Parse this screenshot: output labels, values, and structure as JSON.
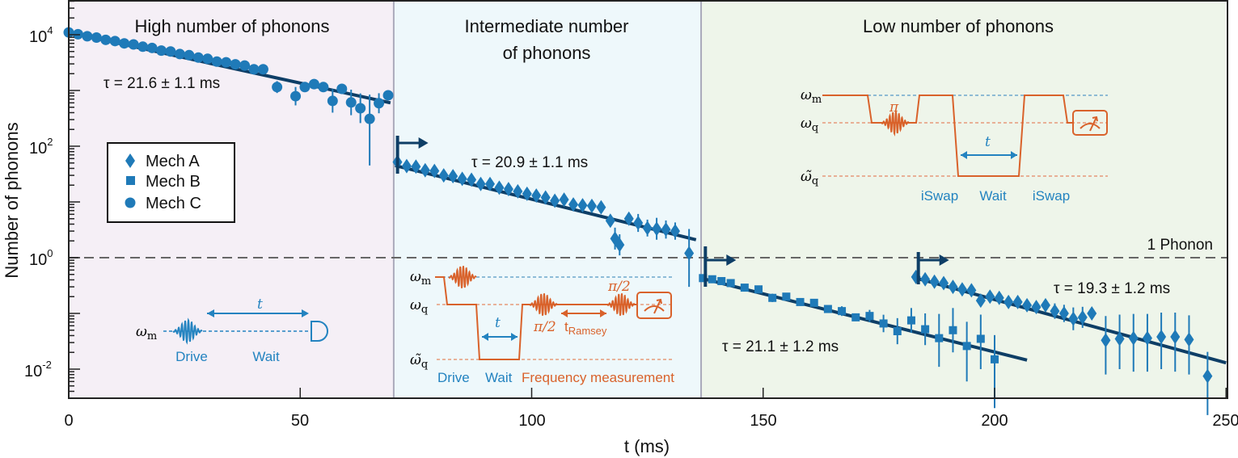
{
  "chart_data": {
    "type": "scatter",
    "title": "",
    "xlabel": "t (ms)",
    "ylabel": "Number of phonons",
    "xlim": [
      0,
      250
    ],
    "ylim_log10": [
      -2.52,
      4.62
    ],
    "yscale": "log",
    "x_ticks": [
      0,
      50,
      100,
      150,
      200,
      250
    ],
    "y_ticks": [
      {
        "base": "10",
        "exp": "4",
        "value": 10000
      },
      {
        "base": "10",
        "exp": "2",
        "value": 100
      },
      {
        "base": "10",
        "exp": "0",
        "value": 1
      },
      {
        "base": "10",
        "exp": "-2",
        "value": 0.01
      }
    ],
    "legend": {
      "placement": "center-left",
      "entries": [
        {
          "label": "Mech A",
          "marker": "diamond"
        },
        {
          "label": "Mech B",
          "marker": "square"
        },
        {
          "label": "Mech C",
          "marker": "circle"
        }
      ]
    },
    "regions": [
      {
        "label": "High number of phonons",
        "t_range": [
          0,
          70.2
        ],
        "color": "#f5eff6"
      },
      {
        "label_line1": "Intermediate number",
        "label_line2": "of phonons",
        "t_range": [
          70.2,
          136.6
        ],
        "color": "#eef8fb"
      },
      {
        "label": "Low number of phonons",
        "t_range": [
          136.6,
          250
        ],
        "color": "#eef5ea"
      }
    ],
    "reference_line": {
      "label": "1 Phonon",
      "value": 1
    },
    "series": [
      {
        "name": "Mech C",
        "marker": "circle",
        "t": [
          0,
          2,
          4,
          6,
          8,
          10,
          12,
          14,
          16,
          18,
          20,
          22,
          24,
          26,
          28,
          30,
          32,
          34,
          36,
          38,
          40,
          42,
          45,
          49,
          51,
          53,
          55,
          57,
          59,
          61,
          63,
          65,
          67,
          69
        ],
        "values": [
          11000,
          10200,
          9400,
          8900,
          8100,
          7700,
          7000,
          6700,
          6100,
          5800,
          5200,
          5000,
          4500,
          4300,
          3900,
          3700,
          3300,
          3200,
          2950,
          2800,
          2400,
          2400,
          1150,
          790,
          1150,
          1300,
          1150,
          650,
          1070,
          610,
          480,
          310,
          590,
          820
        ],
        "err_low": [
          0,
          0,
          0,
          0,
          0,
          0,
          0,
          0,
          0,
          0,
          0,
          0,
          0,
          0,
          0,
          0,
          0,
          0,
          0,
          0,
          0,
          0,
          250,
          250,
          200,
          150,
          150,
          250,
          150,
          250,
          220,
          265,
          200,
          150
        ]
      },
      {
        "name": "Mech A",
        "marker": "diamond",
        "t": [
          71,
          73,
          75,
          77,
          79,
          81,
          83,
          85,
          87,
          89,
          91,
          93,
          95,
          97,
          99,
          101,
          103,
          105,
          107,
          109,
          111,
          113,
          115,
          117,
          118,
          119,
          121,
          123,
          125,
          127,
          129,
          131,
          134
        ],
        "values": [
          52,
          44,
          43,
          37,
          36,
          30,
          29,
          26,
          25,
          21,
          21,
          18,
          17,
          15.5,
          14,
          13,
          12,
          10.5,
          11,
          9,
          8.7,
          8.5,
          8,
          4.6,
          2.2,
          1.7,
          5,
          4.2,
          3.4,
          3.3,
          3.2,
          3.0,
          1.2
        ],
        "err_low": [
          0,
          0,
          0,
          0,
          0,
          0,
          0,
          0,
          0,
          0,
          0,
          0,
          0,
          0,
          0,
          0,
          0,
          0,
          0,
          1.5,
          0,
          1.5,
          0,
          1,
          0.8,
          0.6,
          1,
          1.3,
          1,
          1.2,
          1,
          0.9,
          0.9
        ]
      },
      {
        "name": "Mech B",
        "marker": "square",
        "t": [
          137,
          139,
          141,
          143,
          146,
          149,
          152,
          155,
          158,
          161,
          164,
          167,
          170,
          173,
          176,
          179,
          182,
          185,
          188,
          191,
          194,
          197,
          200
        ],
        "values": [
          0.43,
          0.41,
          0.38,
          0.35,
          0.29,
          0.27,
          0.19,
          0.2,
          0.16,
          0.155,
          0.12,
          0.11,
          0.085,
          0.09,
          0.066,
          0.048,
          0.075,
          0.052,
          0.036,
          0.05,
          0.026,
          0.035,
          0.015
        ],
        "err_low": [
          0,
          0,
          0,
          0,
          0,
          0,
          0.03,
          0,
          0,
          0,
          0,
          0.02,
          0,
          0.02,
          0.02,
          0.02,
          0.03,
          0.025,
          0.025,
          0.03,
          0.02,
          0.025,
          0.013
        ]
      },
      {
        "name": "Mech A (low)",
        "marker": "diamond",
        "t": [
          183,
          185,
          187,
          189,
          191,
          193,
          195,
          197,
          199,
          201,
          203,
          205,
          207,
          209,
          211,
          213,
          215,
          217,
          219,
          221,
          224,
          227,
          230,
          233,
          236,
          239,
          242,
          246
        ],
        "values": [
          0.45,
          0.41,
          0.37,
          0.35,
          0.3,
          0.27,
          0.26,
          0.17,
          0.2,
          0.19,
          0.16,
          0.16,
          0.14,
          0.13,
          0.14,
          0.11,
          0.1,
          0.08,
          0.085,
          0.1,
          0.033,
          0.035,
          0.036,
          0.036,
          0.038,
          0.038,
          0.034,
          0.0075
        ],
        "err_low": [
          0,
          0,
          0,
          0,
          0,
          0,
          0,
          0,
          0,
          0,
          0,
          0,
          0,
          0,
          0.02,
          0.03,
          0.03,
          0.03,
          0.03,
          0.02,
          0.025,
          0.025,
          0.027,
          0.027,
          0.028,
          0.029,
          0.026,
          0.006
        ]
      }
    ],
    "fits": [
      {
        "label": "τ = 21.6 ± 1.1 ms",
        "tau_ms": 21.6,
        "t_range": [
          0,
          69.5
        ],
        "n0": 11000,
        "n_end": 600
      },
      {
        "label": "τ = 20.9 ± 1.1 ms",
        "tau_ms": 20.9,
        "t_range": [
          70.5,
          135.5
        ],
        "n0": 45,
        "n_end": 2.1
      },
      {
        "label": "τ = 21.1 ± 1.2 ms",
        "tau_ms": 21.1,
        "t_range": [
          137,
          207
        ],
        "n0": 0.42,
        "n_end": 0.0145
      },
      {
        "label": "τ = 19.3 ± 1.2 ms",
        "tau_ms": 19.3,
        "t_range": [
          183,
          250
        ],
        "n0": 0.43,
        "n_end": 0.013
      }
    ],
    "start_markers_t": [
      70.5,
      137,
      183
    ]
  },
  "insets": {
    "omega_m": "ω",
    "sub_m": "m",
    "omega_q": "ω",
    "sub_q": "q",
    "omega_tilde_q": "ω̃",
    "sub_tq": "q",
    "t": "t",
    "drive": "Drive",
    "wait": "Wait",
    "pi_half": "π/2",
    "t_ramsey": "t",
    "ramsey_sub": "Ramsey",
    "frequency_measurement": "Frequency measurement",
    "pi": "π",
    "iswap": "iSwap"
  },
  "colors": {
    "data": "#1f7ab8",
    "fit": "#0e3e66",
    "inset_orange": "#d9622b",
    "inset_blue": "#2383c0"
  }
}
